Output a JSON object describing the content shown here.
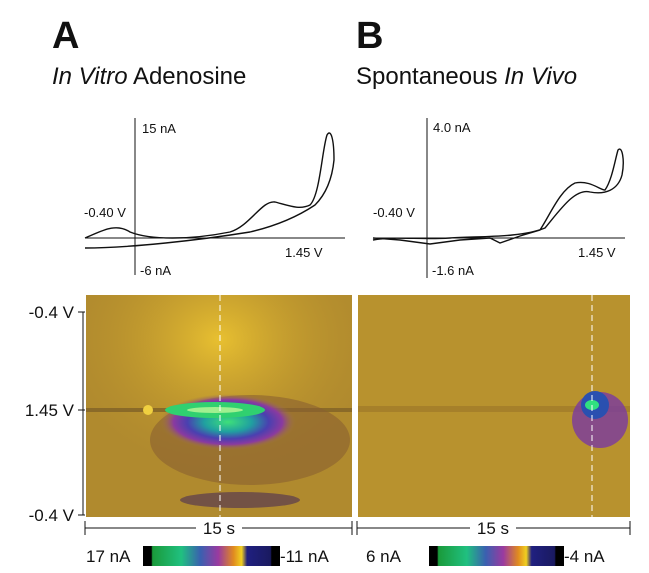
{
  "panels": [
    {
      "letter": "A",
      "title_italic": "In Vitro",
      "title_rest": "Adenosine",
      "cv": {
        "current_max": "15 nA",
        "potential_start": "-0.40 V",
        "potential_switch": "1.45 V",
        "current_min": "-6 nA"
      },
      "color_plot": {
        "time": "15 s",
        "scale_max": "17 nA",
        "scale_min": "-11 nA"
      }
    },
    {
      "letter": "B",
      "title_plain": "Spontaneous",
      "title_italic": "In Vivo",
      "cv": {
        "current_max": "4.0 nA",
        "potential_start": "-0.40 V",
        "potential_switch": "1.45 V",
        "current_min": "-1.6 nA"
      },
      "color_plot": {
        "time": "15 s",
        "scale_max": "6 nA",
        "scale_min": "-4 nA"
      }
    }
  ],
  "potential_axis": {
    "top": "-0.4 V",
    "middle": "1.45 V",
    "bottom": "-0.4 V"
  }
}
